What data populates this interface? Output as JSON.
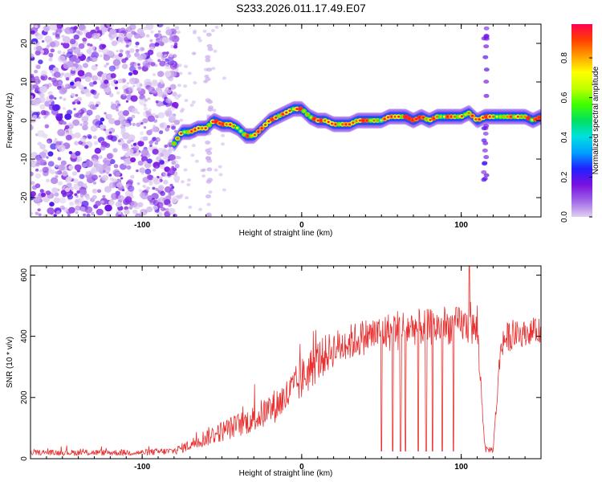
{
  "title": "S233.2026.011.17.49.E07",
  "colorbar": {
    "label": "Normalized spectral amplitude",
    "ticks": [
      "0.0",
      "0.2",
      "0.4",
      "0.6",
      "0.8"
    ],
    "tick_values": [
      0.0,
      0.2,
      0.4,
      0.6,
      0.8
    ],
    "range": [
      0,
      0.97
    ],
    "colors": [
      "#e0d0f0",
      "#a066e8",
      "#7a10e0",
      "#2020ff",
      "#00a0ff",
      "#00e0e0",
      "#00e060",
      "#40ff00",
      "#c0ff00",
      "#ffff00",
      "#ffa000",
      "#ff4000",
      "#ff0050"
    ]
  },
  "chart_data": [
    {
      "type": "heatmap",
      "title": "S233.2026.011.17.49.E07",
      "xlabel": "Height of straight line (km)",
      "ylabel": "Frequency (Hz)",
      "xlim": [
        -170,
        150
      ],
      "ylim": [
        -25,
        25
      ],
      "x_ticks": [
        -100,
        0,
        100
      ],
      "x_tick_labels": [
        "-100",
        "0",
        "100"
      ],
      "y_ticks": [
        -20,
        -10,
        0,
        10,
        20
      ],
      "y_tick_labels": [
        "-20",
        "-10",
        "0",
        "10",
        "20"
      ],
      "ridge": {
        "x": [
          -80,
          -75,
          -70,
          -65,
          -60,
          -55,
          -50,
          -45,
          -40,
          -35,
          -30,
          -25,
          -20,
          -15,
          -10,
          -5,
          0,
          5,
          10,
          15,
          20,
          25,
          30,
          35,
          40,
          45,
          50,
          55,
          60,
          65,
          70,
          75,
          80,
          85,
          90,
          95,
          100,
          105,
          110,
          115,
          120,
          125,
          130,
          135,
          140,
          145,
          150
        ],
        "y": [
          -6,
          -3,
          -3,
          -2,
          -2,
          0,
          -1,
          -1,
          -2,
          -4,
          -4,
          -2,
          0,
          1,
          2,
          3,
          3,
          1,
          0,
          0,
          -1,
          -1,
          -1,
          0,
          0,
          0,
          0,
          1,
          1,
          1,
          0,
          1,
          0,
          1,
          1,
          1,
          1,
          2,
          0,
          1,
          1,
          1,
          1,
          1,
          1,
          0,
          1
        ]
      },
      "noise_region_x": [
        -170,
        -78
      ],
      "vertical_artifacts_x": [
        -58,
        115
      ]
    },
    {
      "type": "line",
      "xlabel": "Height of straight line (km)",
      "ylabel": "SNR (10 * v/v)",
      "xlim": [
        -170,
        150
      ],
      "ylim": [
        0,
        630
      ],
      "x_ticks": [
        -100,
        0,
        100
      ],
      "x_tick_labels": [
        "-100",
        "0",
        "100"
      ],
      "y_ticks": [
        0,
        200,
        400,
        600
      ],
      "y_tick_labels": [
        "0",
        "200",
        "400",
        "600"
      ],
      "color": "#e83030",
      "envelope": {
        "x": [
          -170,
          -140,
          -100,
          -80,
          -70,
          -60,
          -50,
          -40,
          -30,
          -20,
          -10,
          0,
          10,
          20,
          30,
          40,
          50,
          60,
          70,
          80,
          90,
          100,
          110,
          115,
          120,
          125,
          130,
          140,
          150
        ],
        "mean": [
          20,
          20,
          20,
          25,
          45,
          70,
          90,
          110,
          130,
          160,
          200,
          260,
          320,
          360,
          380,
          400,
          410,
          420,
          430,
          430,
          430,
          440,
          420,
          30,
          30,
          380,
          400,
          410,
          420
        ],
        "spread": [
          8,
          10,
          10,
          12,
          20,
          30,
          35,
          40,
          45,
          55,
          60,
          70,
          70,
          60,
          60,
          60,
          60,
          70,
          60,
          60,
          60,
          60,
          60,
          10,
          10,
          50,
          50,
          40,
          40
        ]
      },
      "dropouts_x": [
        50,
        57,
        62,
        65,
        73,
        78,
        82,
        88,
        95
      ],
      "dropout_value": 25,
      "peak": {
        "x": 105,
        "y": 630
      }
    }
  ]
}
